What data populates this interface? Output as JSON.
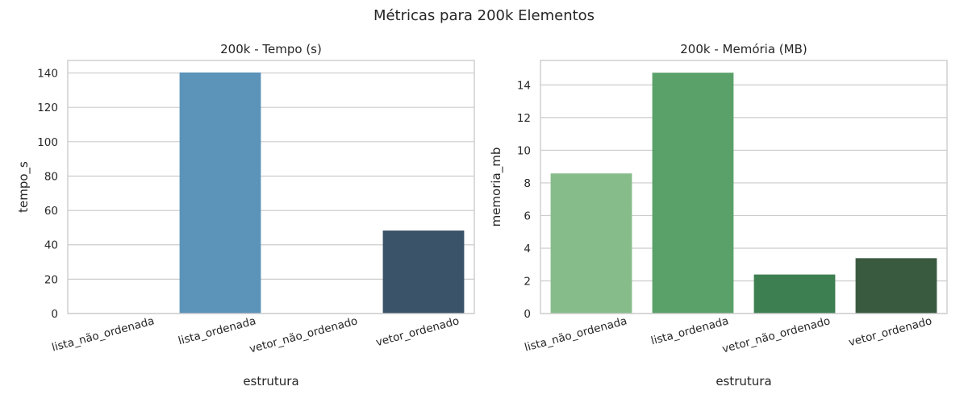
{
  "suptitle": "Métricas para 200k Elementos",
  "chart_data": [
    {
      "type": "bar",
      "title": "200k - Tempo (s)",
      "xlabel": "estrutura",
      "ylabel": "tempo_s",
      "categories": [
        "lista_não_ordenada",
        "lista_ordenada",
        "vetor_não_ordenado",
        "vetor_ordenado"
      ],
      "values": [
        0.0,
        140.3,
        0.0,
        48.3
      ],
      "ylim": [
        0,
        147.3
      ],
      "yticks": [
        0,
        20,
        40,
        60,
        80,
        100,
        120,
        140
      ],
      "colors": [
        "#6aa9d2",
        "#5b93b9",
        "#4b7393",
        "#3b5368"
      ],
      "grid": true,
      "legend": "none"
    },
    {
      "type": "bar",
      "title": "200k - Memória (MB)",
      "xlabel": "estrutura",
      "ylabel": "memoria_mb",
      "categories": [
        "lista_não_ordenada",
        "lista_ordenada",
        "vetor_não_ordenado",
        "vetor_ordenado"
      ],
      "values": [
        8.58,
        14.75,
        2.39,
        3.39
      ],
      "ylim": [
        0,
        15.5
      ],
      "yticks": [
        0,
        2,
        4,
        6,
        8,
        10,
        12,
        14
      ],
      "colors": [
        "#86bb8a",
        "#5aa169",
        "#3e7f52",
        "#3a5a40"
      ],
      "grid": true,
      "legend": "none"
    }
  ]
}
